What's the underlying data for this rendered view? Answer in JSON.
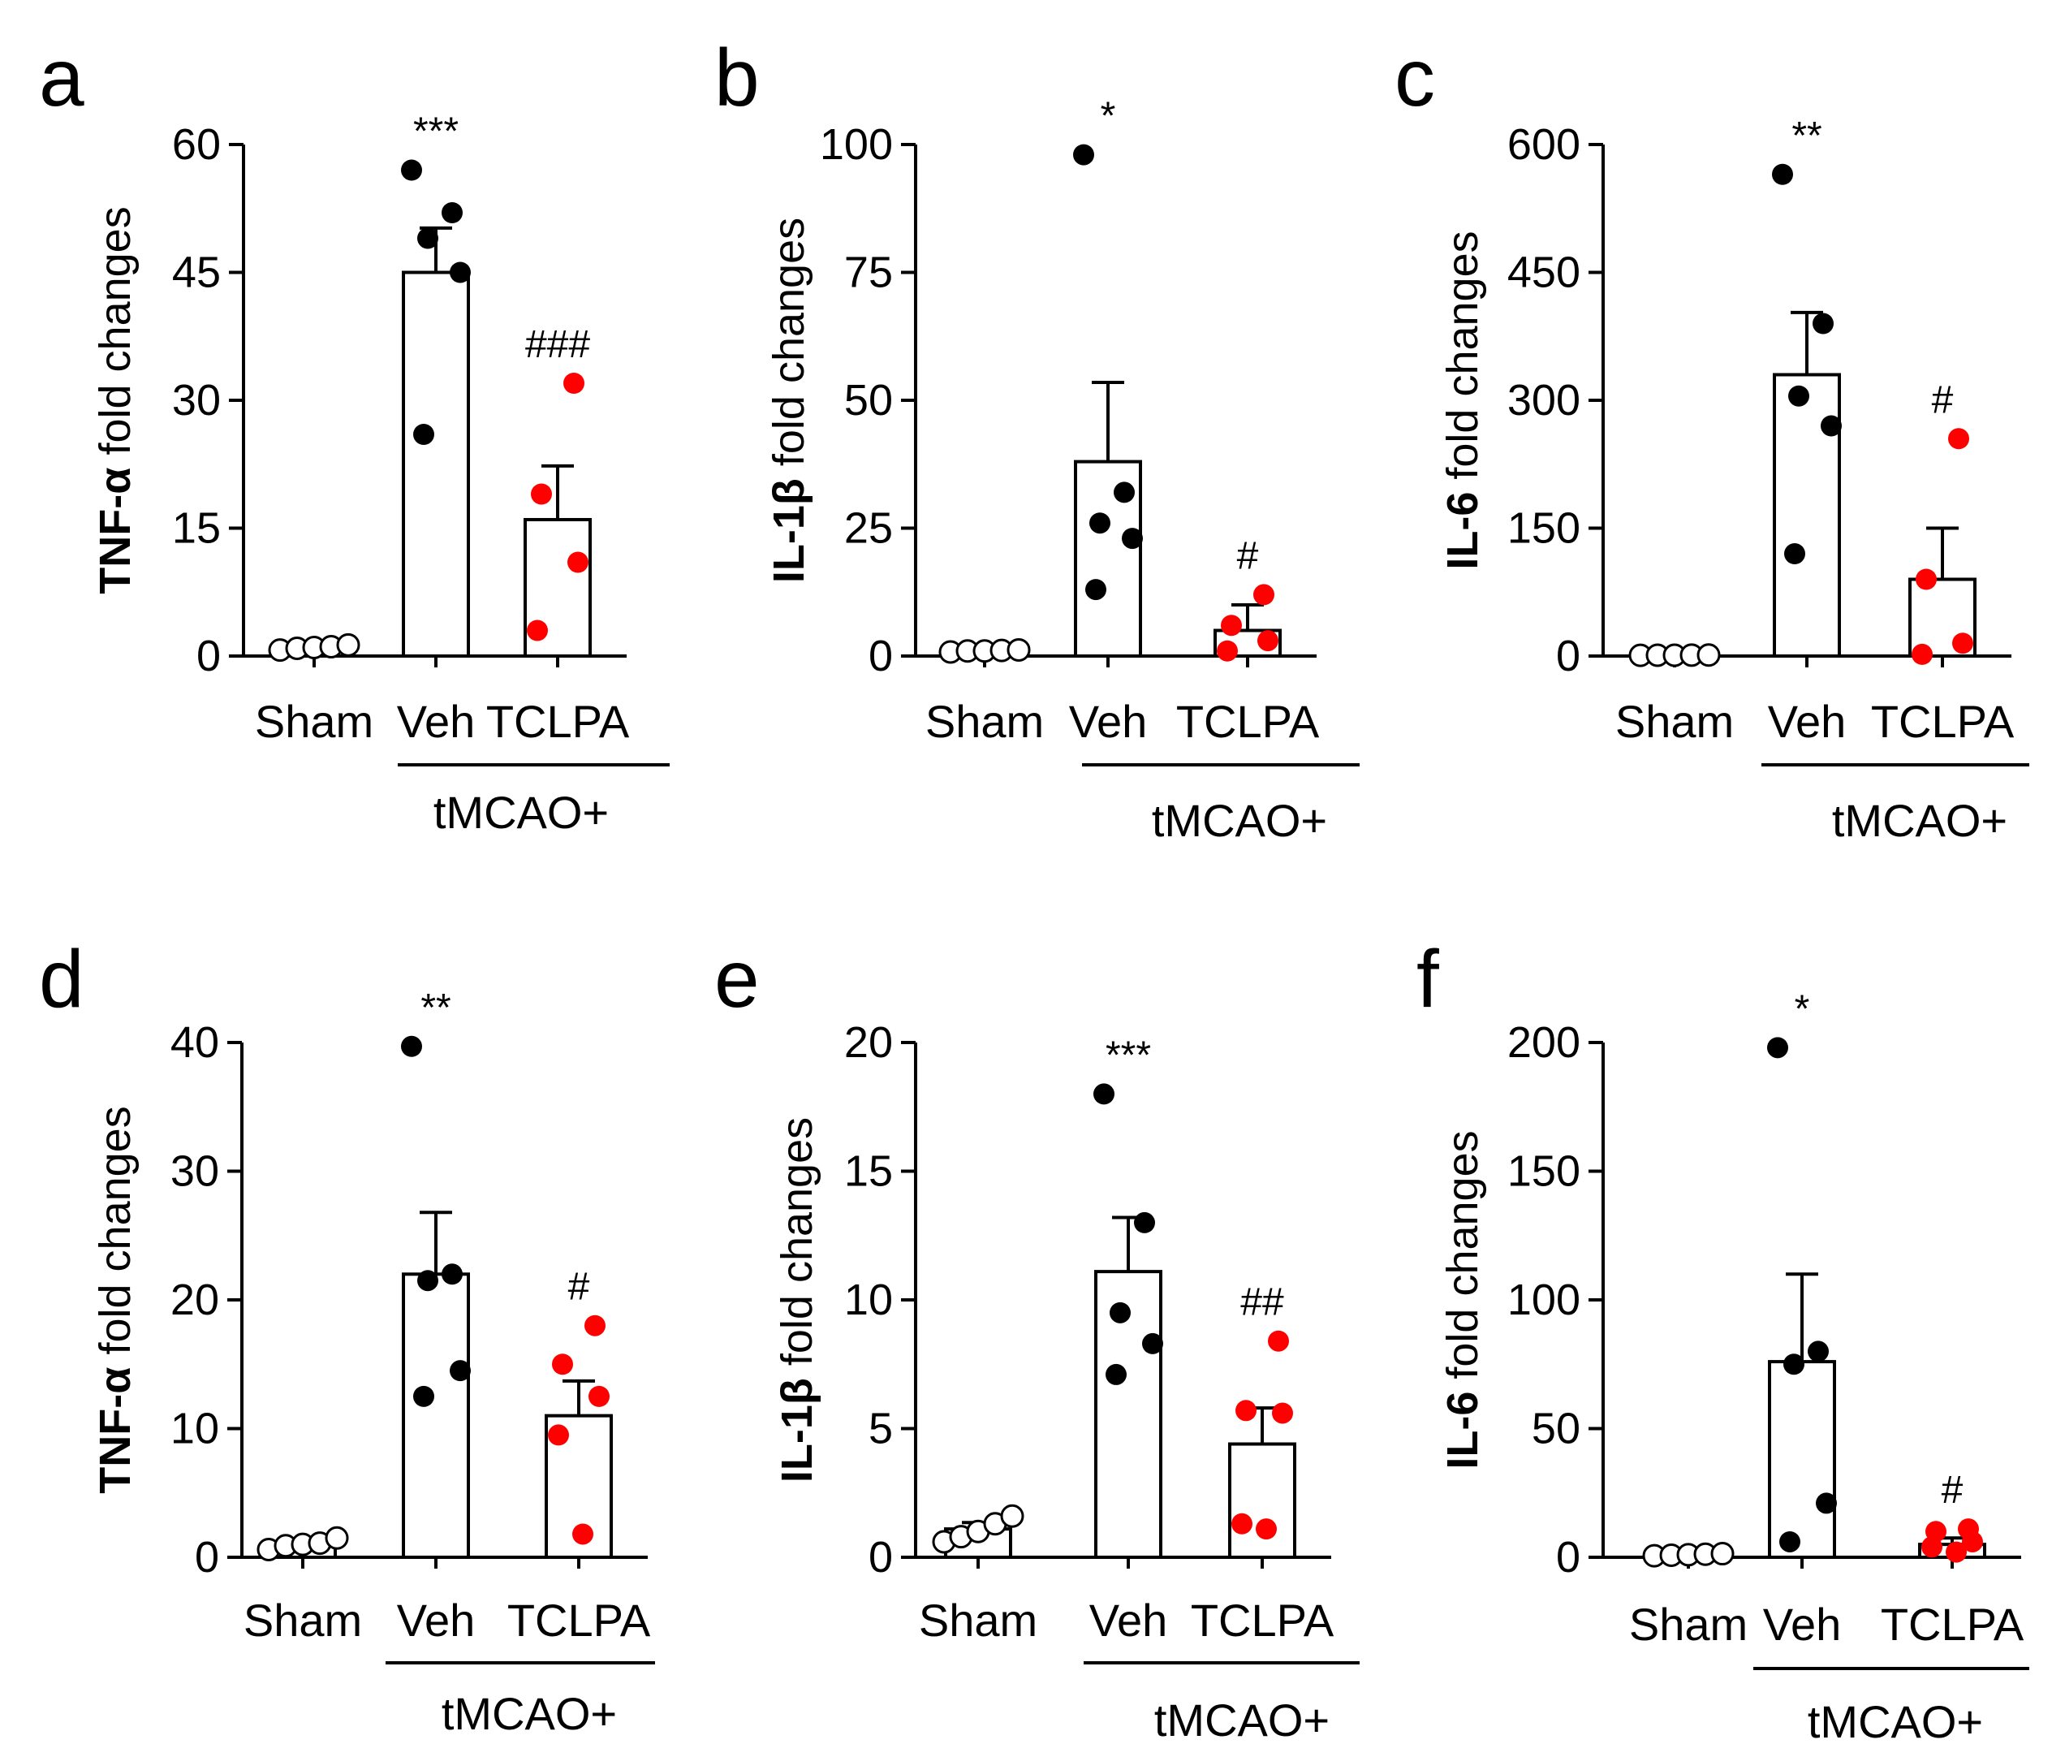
{
  "figure": {
    "panels": [
      {
        "letter": "a",
        "ylabel_bold": "TNF-α",
        "ylabel_rest": " fold changes",
        "group_label": "tMCAO+"
      },
      {
        "letter": "b",
        "ylabel_bold": "IL-1β",
        "ylabel_rest": " fold changes",
        "group_label": "tMCAO+"
      },
      {
        "letter": "c",
        "ylabel_bold": "IL-6",
        "ylabel_rest": " fold changes",
        "group_label": "tMCAO+"
      },
      {
        "letter": "d",
        "ylabel_bold": "TNF-α",
        "ylabel_rest": " fold changes",
        "group_label": "tMCAO+"
      },
      {
        "letter": "e",
        "ylabel_bold": "IL-1β",
        "ylabel_rest": " fold changes",
        "group_label": "tMCAO+"
      },
      {
        "letter": "f",
        "ylabel_bold": "IL-6",
        "ylabel_rest": " fold changes",
        "group_label": "tMCAO+"
      }
    ]
  },
  "chart_data": [
    {
      "type": "bar",
      "panel": "a",
      "categories": [
        "Sham",
        "Veh",
        "TCLPA"
      ],
      "ylabel": "TNF-α fold changes",
      "ylim": [
        0,
        60
      ],
      "yticks": [
        0,
        15,
        30,
        45,
        60
      ],
      "means": [
        1,
        45,
        16
      ],
      "sem": [
        0.2,
        5.2,
        6.3
      ],
      "points": [
        [
          0.7,
          0.9,
          1.0,
          1.1,
          1.3
        ],
        [
          57,
          52,
          49,
          45,
          26
        ],
        [
          32,
          19,
          11,
          3
        ]
      ],
      "significance": [
        "",
        "***",
        "###"
      ],
      "point_colors": [
        "#ffffff",
        "#000000",
        "#ff0000"
      ]
    },
    {
      "type": "bar",
      "panel": "b",
      "categories": [
        "Sham",
        "Veh",
        "TCLPA"
      ],
      "ylabel": "IL-1β fold changes",
      "ylim": [
        0,
        100
      ],
      "yticks": [
        0,
        25,
        50,
        75,
        100
      ],
      "means": [
        1,
        38,
        5
      ],
      "sem": [
        0.2,
        15.5,
        5
      ],
      "points": [
        [
          0.8,
          1.0,
          1.0,
          1.1,
          1.2
        ],
        [
          98,
          32,
          26,
          23,
          13
        ],
        [
          12,
          6,
          3,
          1
        ]
      ],
      "significance": [
        "",
        "*",
        "#"
      ],
      "point_colors": [
        "#ffffff",
        "#000000",
        "#ff0000"
      ]
    },
    {
      "type": "bar",
      "panel": "c",
      "categories": [
        "Sham",
        "Veh",
        "TCLPA"
      ],
      "ylabel": "IL-6 fold changes",
      "ylim": [
        0,
        600
      ],
      "yticks": [
        0,
        150,
        300,
        450,
        600
      ],
      "means": [
        1,
        330,
        90
      ],
      "sem": [
        0.2,
        73,
        60
      ],
      "points": [
        [
          0.8,
          1.0,
          1.0,
          1.1,
          1.2
        ],
        [
          565,
          390,
          305,
          270,
          120
        ],
        [
          255,
          90,
          15,
          2
        ]
      ],
      "significance": [
        "",
        "**",
        "#"
      ],
      "point_colors": [
        "#ffffff",
        "#000000",
        "#ff0000"
      ]
    },
    {
      "type": "bar",
      "panel": "d",
      "categories": [
        "Sham",
        "Veh",
        "TCLPA"
      ],
      "ylabel": "TNF-α fold changes",
      "ylim": [
        0,
        40
      ],
      "yticks": [
        0,
        10,
        20,
        30,
        40
      ],
      "means": [
        1,
        22,
        11
      ],
      "sem": [
        0.2,
        4.8,
        2.7
      ],
      "points": [
        [
          0.6,
          0.9,
          1.0,
          1.1,
          1.5
        ],
        [
          39.7,
          22,
          21.5,
          14.5,
          12.5
        ],
        [
          18,
          15,
          12.5,
          9.5,
          1.8
        ]
      ],
      "significance": [
        "",
        "**",
        "#"
      ],
      "point_colors": [
        "#ffffff",
        "#000000",
        "#ff0000"
      ]
    },
    {
      "type": "bar",
      "panel": "e",
      "categories": [
        "Sham",
        "Veh",
        "TCLPA"
      ],
      "ylabel": "IL-1β fold changes",
      "ylim": [
        0,
        20
      ],
      "yticks": [
        0,
        5,
        10,
        15,
        20
      ],
      "means": [
        1.1,
        11.1,
        4.4
      ],
      "sem": [
        0.25,
        2.1,
        1.4
      ],
      "points": [
        [
          0.6,
          0.8,
          1.0,
          1.3,
          1.6
        ],
        [
          18,
          13,
          9.5,
          8.3,
          7.1
        ],
        [
          8.4,
          5.7,
          5.6,
          1.3,
          1.1
        ]
      ],
      "significance": [
        "",
        "***",
        "##"
      ],
      "point_colors": [
        "#ffffff",
        "#000000",
        "#ff0000"
      ]
    },
    {
      "type": "bar",
      "panel": "f",
      "categories": [
        "Sham",
        "Veh",
        "TCLPA"
      ],
      "ylabel": "IL-6 fold changes",
      "ylim": [
        0,
        200
      ],
      "yticks": [
        0,
        50,
        100,
        150,
        200
      ],
      "means": [
        1,
        76,
        5
      ],
      "sem": [
        0.3,
        34,
        2.5
      ],
      "points": [
        [
          0.6,
          0.8,
          1.0,
          1.2,
          1.4
        ],
        [
          198,
          80,
          75,
          21,
          6
        ],
        [
          11,
          10,
          6,
          4,
          2
        ]
      ],
      "significance": [
        "",
        "*",
        "#"
      ],
      "point_colors": [
        "#ffffff",
        "#000000",
        "#ff0000"
      ]
    }
  ]
}
